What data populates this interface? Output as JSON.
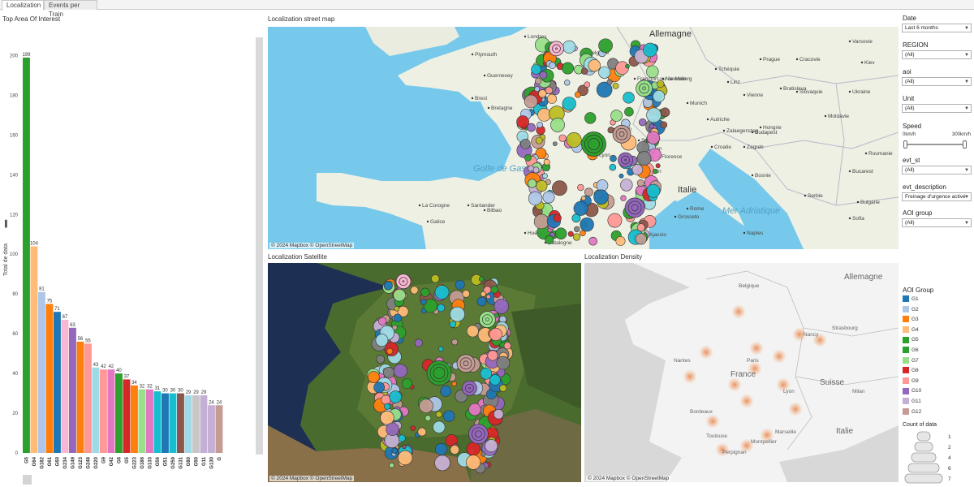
{
  "tabs": [
    "Localization",
    "Events per Train"
  ],
  "bar_title": "Top Area Of Interest",
  "chart_data": {
    "type": "bar",
    "title": "Top Area Of Interest",
    "ylabel": "Total de data",
    "ylim": [
      0,
      210
    ],
    "yticks": [
      0,
      20,
      40,
      60,
      80,
      100,
      120,
      140,
      160,
      180,
      200
    ],
    "categories": [
      "G5",
      "G64",
      "G182",
      "G61",
      "G60",
      "G234",
      "G149",
      "G123",
      "G248",
      "G220",
      "G9",
      "G42",
      "G6",
      "G5",
      "G223",
      "G186",
      "G133",
      "G56",
      "G51",
      "G259",
      "G131",
      "G80",
      "G50",
      "G11",
      "G130",
      "G"
    ],
    "values": [
      199,
      104,
      81,
      75,
      71,
      67,
      63,
      56,
      55,
      43,
      42,
      42,
      40,
      37,
      34,
      32,
      32,
      31,
      30,
      30,
      30,
      29,
      29,
      29,
      24,
      24
    ],
    "colors": [
      "#2ca02c",
      "#ffbb78",
      "#aec7e8",
      "#ff7f0e",
      "#1f77b4",
      "#f7b6d2",
      "#9467bd",
      "#ff7f0e",
      "#ff9896",
      "#9edae5",
      "#ff9896",
      "#e377c2",
      "#2ca02c",
      "#d62728",
      "#ff7f0e",
      "#98df8a",
      "#e377c2",
      "#17becf",
      "#1f77b4",
      "#17becf",
      "#8c564b",
      "#9edae5",
      "#c7c7c7",
      "#c5b0d5",
      "#c5b0d5",
      "#c49c94"
    ]
  },
  "map1": {
    "title": "Localization street map",
    "attribution": "© 2024 Mapbox  © OpenStreetMap",
    "labels": [
      "Londres",
      "Allemagne",
      "Plymouth",
      "Belgique",
      "Francfort-sur-le-Main",
      "Prague",
      "Tchéquie",
      "Cracovie",
      "Kiev",
      "Nuremberg",
      "Bratislava",
      "Munich",
      "Vienne",
      "Slovaquie",
      "Ukraine",
      "Autriche",
      "Hongrie",
      "Budapest",
      "Moldavie",
      "Zürich",
      "Suisse",
      "Zalaegerszeg",
      "Roumanie",
      "Croatie",
      "Bucarest",
      "Serbie",
      "Italie",
      "Bosnie",
      "Bulgarie",
      "Golfe de Gascogne",
      "La Corogne",
      "Santander",
      "Galice",
      "Bilbao",
      "Huesca",
      "Catalogne",
      "Florence",
      "Mer Adriatique",
      "Grosseto",
      "Ajaccio",
      "Naples",
      "Sofia",
      "Guernesey",
      "Brest",
      "Bretagne",
      "Lyon",
      "Turin",
      "Milan",
      "Gênes",
      "Rome",
      "Varsovie",
      "Linz",
      "Zagreb"
    ]
  },
  "map2": {
    "title": "Localization Satellite",
    "attribution": "© 2024 Mapbox  © OpenStreetMap"
  },
  "map3": {
    "title": "Localization Density",
    "attribution": "© 2024 Mapbox  © OpenStreetMap",
    "labels": [
      "Allemagne",
      "Belgique",
      "Nancy",
      "Strasbourg",
      "Paris",
      "Nantes",
      "France",
      "Lyon",
      "Suisse",
      "Bordeaux",
      "Marseille",
      "Italie",
      "Perpignan",
      "Milan",
      "Toulouse",
      "Montpellier"
    ]
  },
  "filters": [
    {
      "label": "Date",
      "value": "Last 6 months"
    },
    {
      "label": "REGION",
      "value": "(All)"
    },
    {
      "label": "aoi",
      "value": "(All)"
    },
    {
      "label": "Unit",
      "value": "(All)"
    },
    {
      "label": "evt_st",
      "value": "(All)"
    },
    {
      "label": "evt_description",
      "value": "Freinage d'urgence activé"
    },
    {
      "label": "AOI group",
      "value": "(All)"
    }
  ],
  "speed": {
    "label": "Speed",
    "min": "0km/h",
    "max": "300km/h"
  },
  "legend": {
    "title": "AOI Group",
    "items": [
      {
        "name": "G1",
        "color": "#1f77b4"
      },
      {
        "name": "G2",
        "color": "#aec7e8"
      },
      {
        "name": "G3",
        "color": "#ff7f0e"
      },
      {
        "name": "G4",
        "color": "#ffbb78"
      },
      {
        "name": "G5",
        "color": "#2ca02c"
      },
      {
        "name": "G6",
        "color": "#2ca02c"
      },
      {
        "name": "G7",
        "color": "#98df8a"
      },
      {
        "name": "G8",
        "color": "#d62728"
      },
      {
        "name": "G9",
        "color": "#ff9896"
      },
      {
        "name": "G10",
        "color": "#9467bd"
      },
      {
        "name": "G11",
        "color": "#c5b0d5"
      },
      {
        "name": "G12",
        "color": "#c49c94"
      }
    ]
  },
  "size_legend": {
    "title": "Count of data",
    "values": [
      "1",
      "2",
      "4",
      "6",
      "7"
    ]
  },
  "icons": {
    "dropdown": "chevron-down-icon",
    "filter": "bar-chart-icon"
  }
}
